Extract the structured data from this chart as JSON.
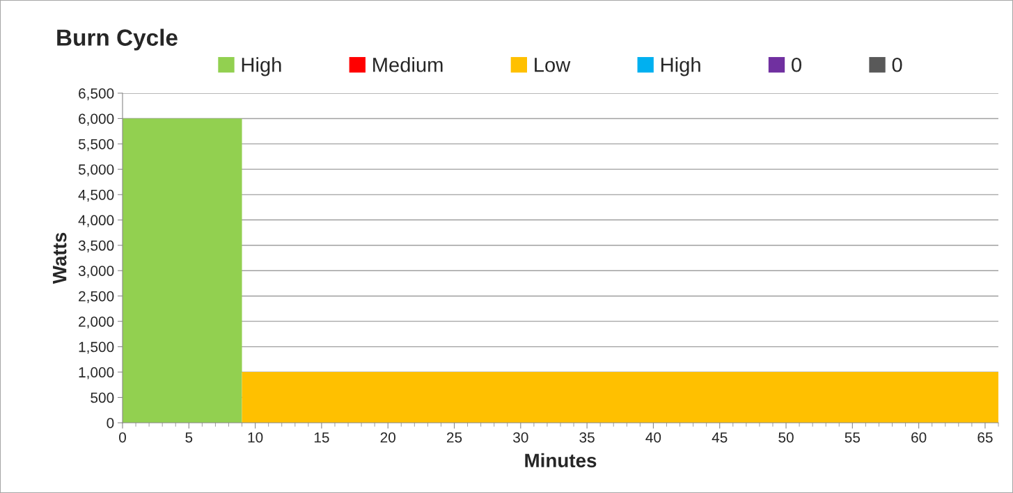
{
  "chart_data": {
    "type": "area",
    "title": "Burn Cycle",
    "xlabel": "Minutes",
    "ylabel": "Watts",
    "series": [
      {
        "name": "High",
        "color": "#92d050",
        "x": [
          0,
          9
        ],
        "values": [
          6000,
          6000
        ]
      },
      {
        "name": "Medium",
        "color": "#ff0000"
      },
      {
        "name": "Low",
        "color": "#ffc000",
        "x": [
          9,
          66
        ],
        "values": [
          1000,
          1000
        ]
      },
      {
        "name": "High",
        "color": "#00b0f0"
      },
      {
        "name": "0",
        "color": "#7030a0"
      },
      {
        "name": "0",
        "color": "#595959"
      }
    ],
    "xlim": [
      0,
      66
    ],
    "xticks": [
      0,
      5,
      10,
      15,
      20,
      25,
      30,
      35,
      40,
      45,
      50,
      55,
      60,
      65
    ],
    "ylim": [
      0,
      6500
    ],
    "yticks": [
      {
        "value": 0,
        "label": "0"
      },
      {
        "value": 500,
        "label": "500"
      },
      {
        "value": 1000,
        "label": "1,000"
      },
      {
        "value": 1500,
        "label": "1,500"
      },
      {
        "value": 2000,
        "label": "2,000"
      },
      {
        "value": 2500,
        "label": "2,500"
      },
      {
        "value": 3000,
        "label": "3,000"
      },
      {
        "value": 3500,
        "label": "3,500"
      },
      {
        "value": 4000,
        "label": "4,000"
      },
      {
        "value": 4500,
        "label": "4,500"
      },
      {
        "value": 5000,
        "label": "5,000"
      },
      {
        "value": 5500,
        "label": "5,500"
      },
      {
        "value": 6000,
        "label": "6,000"
      },
      {
        "value": 6500,
        "label": "6,500"
      }
    ],
    "grid": "y",
    "legend": "top"
  }
}
